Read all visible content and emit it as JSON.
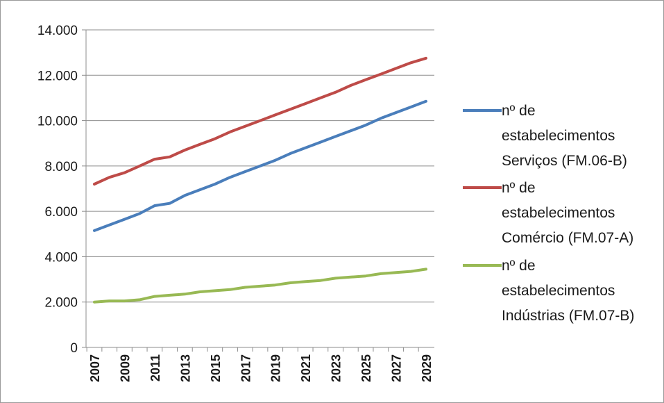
{
  "chart_data": {
    "type": "line",
    "title": "",
    "xlabel": "",
    "ylabel": "",
    "ylim": [
      0,
      14000
    ],
    "yticks": [
      "0",
      "2.000",
      "4.000",
      "6.000",
      "8.000",
      "10.000",
      "12.000",
      "14.000"
    ],
    "xticks": [
      "2007",
      "2009",
      "2011",
      "2013",
      "2015",
      "2017",
      "2019",
      "2021",
      "2023",
      "2025",
      "2027",
      "2029"
    ],
    "x": [
      2007,
      2008,
      2009,
      2010,
      2011,
      2012,
      2013,
      2014,
      2015,
      2016,
      2017,
      2018,
      2019,
      2020,
      2021,
      2022,
      2023,
      2024,
      2025,
      2026,
      2027,
      2028,
      2029
    ],
    "grid": "horizontal",
    "legend_position": "right",
    "series": [
      {
        "name_lines": [
          "nº de",
          "estabelecimentos",
          "Serviços (FM.06-B)"
        ],
        "color": "#4a7ebb",
        "values": [
          5150,
          5400,
          5650,
          5900,
          6250,
          6350,
          6700,
          6950,
          7200,
          7500,
          7750,
          8000,
          8250,
          8550,
          8800,
          9050,
          9300,
          9550,
          9800,
          10100,
          10350,
          10600,
          10850
        ]
      },
      {
        "name_lines": [
          "nº de",
          "estabelecimentos",
          "Comércio (FM.07-A)"
        ],
        "color": "#be4b48",
        "values": [
          7200,
          7500,
          7700,
          8000,
          8300,
          8400,
          8700,
          8950,
          9200,
          9500,
          9750,
          10000,
          10250,
          10500,
          10750,
          11000,
          11250,
          11550,
          11800,
          12050,
          12300,
          12550,
          12750
        ]
      },
      {
        "name_lines": [
          "nº de",
          "estabelecimentos",
          "Indústrias (FM.07-B)"
        ],
        "color": "#98b954",
        "values": [
          2000,
          2050,
          2050,
          2100,
          2250,
          2300,
          2350,
          2450,
          2500,
          2550,
          2650,
          2700,
          2750,
          2850,
          2900,
          2950,
          3050,
          3100,
          3150,
          3250,
          3300,
          3350,
          3450
        ]
      }
    ]
  }
}
